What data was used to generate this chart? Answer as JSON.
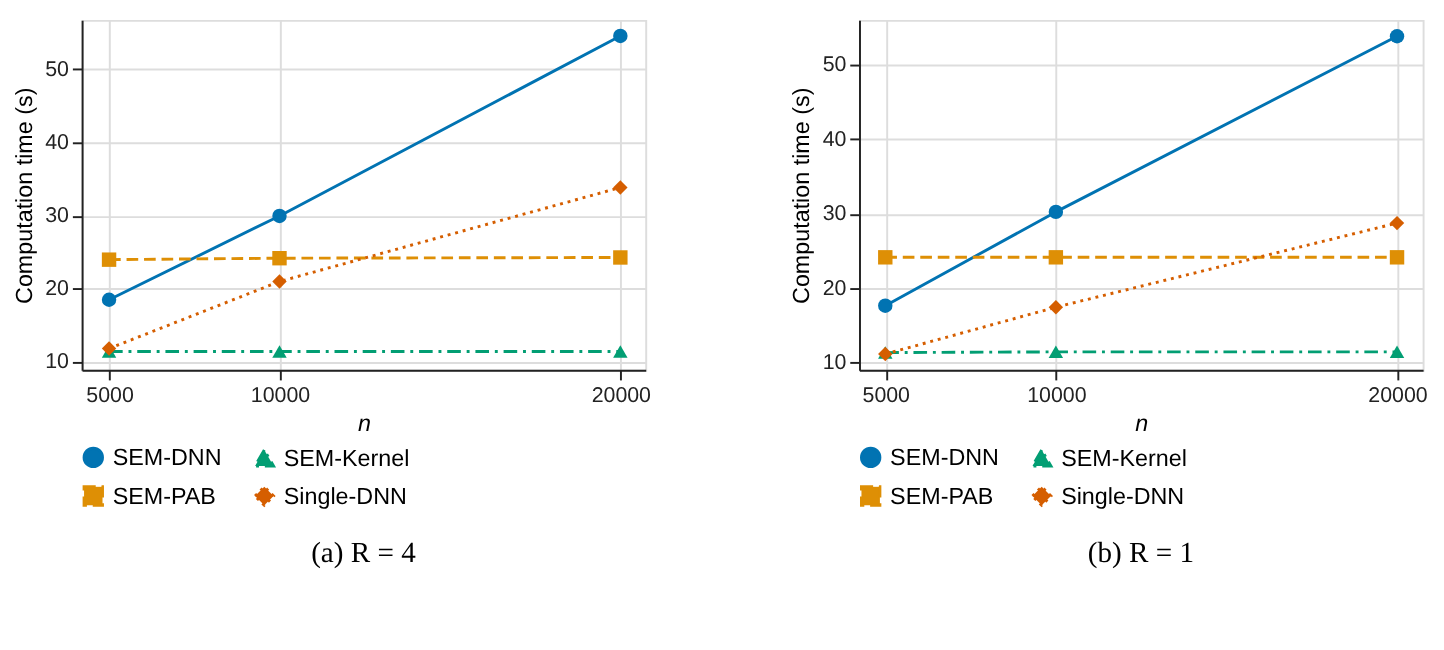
{
  "chart_data": [
    {
      "type": "line",
      "title": "(a) R = 4",
      "xlabel": "n",
      "ylabel": "Computation time (s)",
      "x": [
        5000,
        10000,
        20000
      ],
      "xlim": [
        4195,
        20730
      ],
      "xticks": [
        5000,
        10000,
        20000
      ],
      "ylim": [
        8.8,
        56.8
      ],
      "yticks": [
        10,
        20,
        30,
        40,
        50
      ],
      "grid": true,
      "legend": "bottom",
      "series": [
        {
          "name": "SEM-DNN",
          "color": "#0173b2",
          "marker": "circle",
          "line_style": "solid",
          "values": [
            18.4,
            29.9,
            54.6
          ]
        },
        {
          "name": "SEM-Kernel",
          "color": "#029e73",
          "marker": "triangle",
          "line_style": "dashdot",
          "values": [
            11.3,
            11.3,
            11.3
          ]
        },
        {
          "name": "SEM-PAB",
          "color": "#de8f05",
          "marker": "square",
          "line_style": "dashed",
          "values": [
            23.9,
            24.1,
            24.2
          ]
        },
        {
          "name": "Single-DNN",
          "color": "#d55e00",
          "marker": "diamond",
          "line_style": "dotted",
          "values": [
            11.7,
            20.9,
            33.8
          ]
        }
      ]
    },
    {
      "type": "line",
      "title": "(b) R = 1",
      "xlabel": "n",
      "ylabel": "Computation time (s)",
      "x": [
        5000,
        10000,
        20000
      ],
      "xlim": [
        4230,
        20750
      ],
      "xticks": [
        5000,
        10000,
        20000
      ],
      "ylim": [
        9.0,
        56.0
      ],
      "yticks": [
        10,
        20,
        30,
        40,
        50
      ],
      "grid": true,
      "legend": "bottom",
      "series": [
        {
          "name": "SEM-DNN",
          "color": "#0173b2",
          "marker": "circle",
          "line_style": "solid",
          "values": [
            17.6,
            30.2,
            53.8
          ]
        },
        {
          "name": "SEM-Kernel",
          "color": "#029e73",
          "marker": "triangle",
          "line_style": "dashdot",
          "values": [
            11.3,
            11.4,
            11.4
          ]
        },
        {
          "name": "SEM-PAB",
          "color": "#de8f05",
          "marker": "square",
          "line_style": "dashed",
          "values": [
            24.1,
            24.1,
            24.1
          ]
        },
        {
          "name": "Single-DNN",
          "color": "#d55e00",
          "marker": "diamond",
          "line_style": "dotted",
          "values": [
            11.1,
            17.4,
            28.7
          ]
        }
      ]
    }
  ]
}
